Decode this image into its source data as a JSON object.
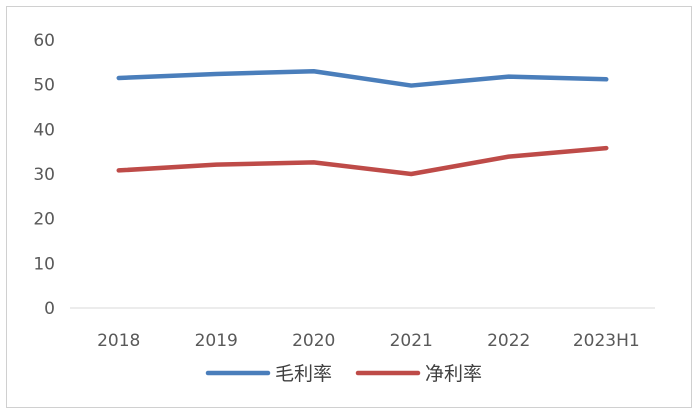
{
  "chart_data": {
    "type": "line",
    "categories": [
      "2018",
      "2019",
      "2020",
      "2021",
      "2022",
      "2023H1"
    ],
    "series": [
      {
        "name": "毛利率",
        "color": "#4a7ebb",
        "values": [
          51.5,
          52.4,
          53.0,
          49.8,
          51.8,
          51.2
        ]
      },
      {
        "name": "净利率",
        "color": "#be4b48",
        "values": [
          30.8,
          32.1,
          32.6,
          30.0,
          33.9,
          35.8
        ]
      }
    ],
    "ylim": [
      0,
      60
    ],
    "yticks": [
      "0",
      "10",
      "20",
      "30",
      "40",
      "50",
      "60"
    ],
    "grid": false,
    "legend": "bottom"
  }
}
